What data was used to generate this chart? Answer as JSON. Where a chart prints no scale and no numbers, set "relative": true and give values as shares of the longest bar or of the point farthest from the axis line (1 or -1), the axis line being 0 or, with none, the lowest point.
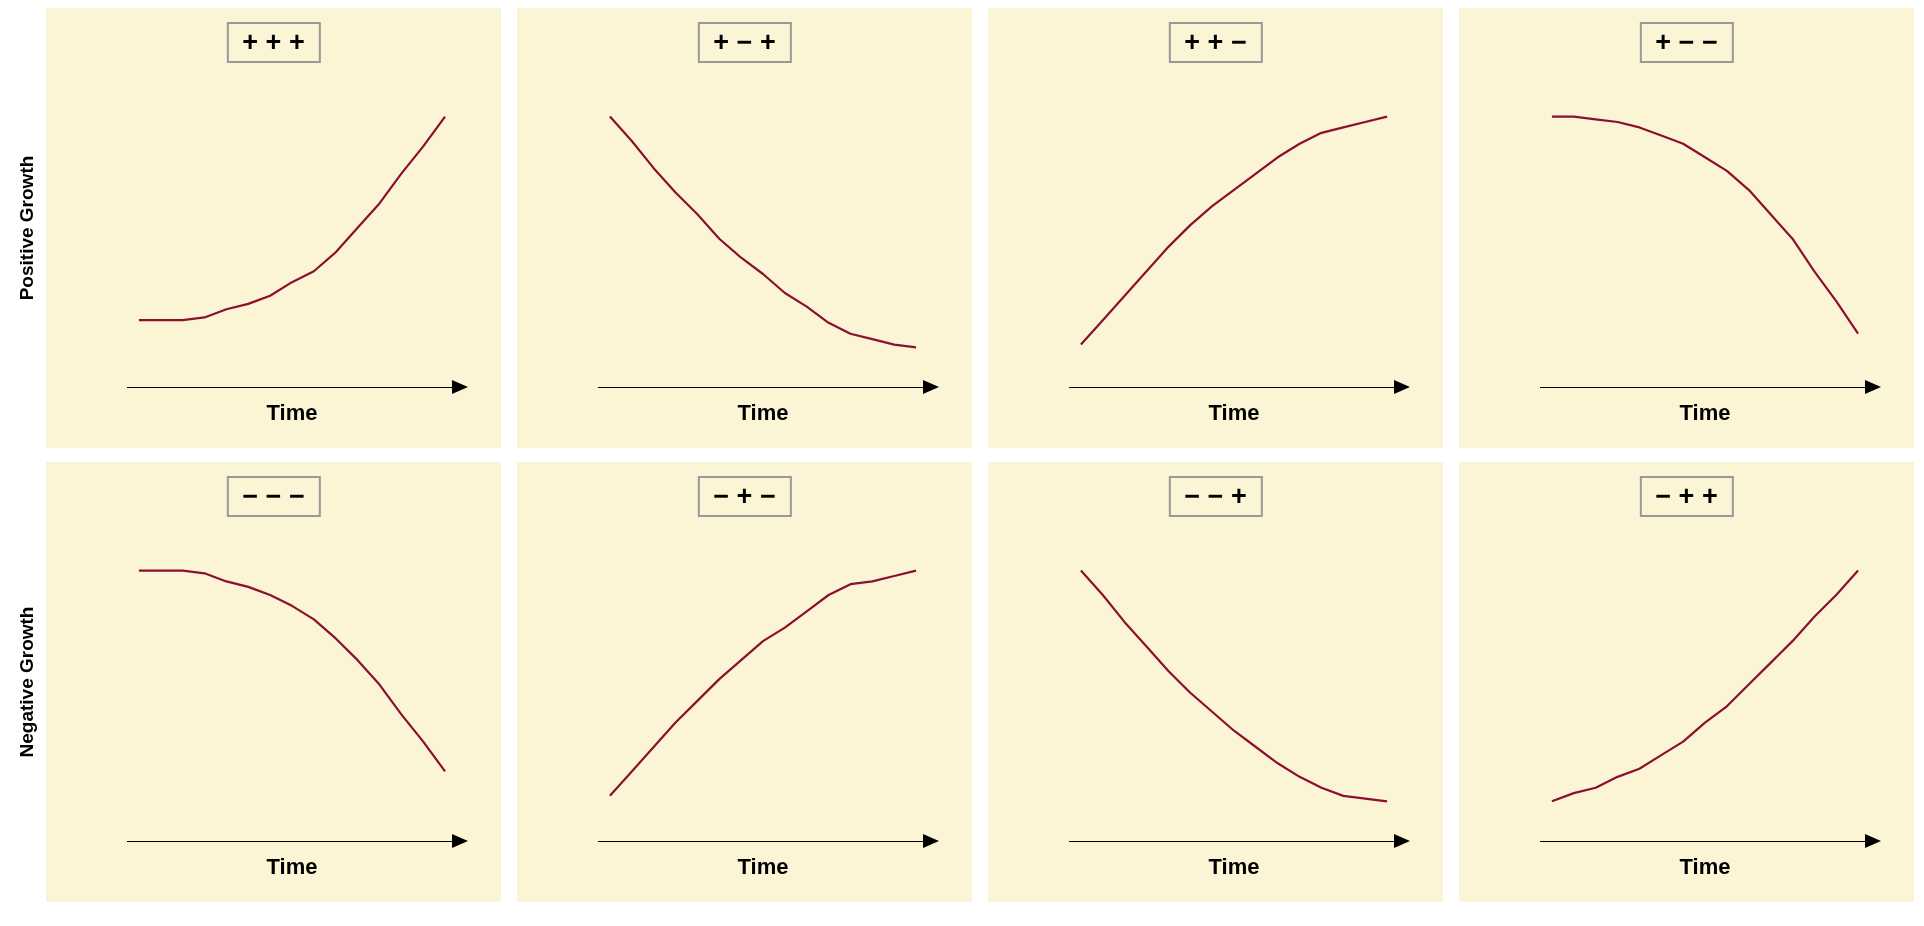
{
  "chart_data": [
    {
      "type": "line",
      "relative": true,
      "title": "+ + +",
      "xlabel": "Time",
      "ylabel": "Positive Growth",
      "categories": [
        null,
        null,
        null,
        null,
        null,
        null,
        null,
        null,
        null,
        null,
        null,
        null,
        null,
        null,
        null
      ],
      "series": [
        {
          "color": "#8b0f2e",
          "values": [
            0.25,
            0.25,
            0.25,
            0.26,
            0.29,
            0.31,
            0.34,
            0.39,
            0.43,
            0.5,
            0.59,
            0.68,
            0.79,
            0.89,
            1
          ]
        }
      ]
    },
    {
      "type": "line",
      "relative": true,
      "title": "+ − +",
      "xlabel": "Time",
      "categories": [
        null,
        null,
        null,
        null,
        null,
        null,
        null,
        null,
        null,
        null,
        null,
        null,
        null,
        null,
        null
      ],
      "series": [
        {
          "color": "#8b0f2e",
          "values": [
            1,
            0.91,
            0.81,
            0.72,
            0.64,
            0.55,
            0.48,
            0.42,
            0.35,
            0.3,
            0.24,
            0.2,
            0.18,
            0.16,
            0.15
          ]
        }
      ]
    },
    {
      "type": "line",
      "relative": true,
      "title": "+ + −",
      "xlabel": "Time",
      "categories": [
        null,
        null,
        null,
        null,
        null,
        null,
        null,
        null,
        null,
        null,
        null,
        null,
        null,
        null,
        null
      ],
      "series": [
        {
          "color": "#8b0f2e",
          "values": [
            0.16,
            0.25,
            0.34,
            0.43,
            0.52,
            0.6,
            0.67,
            0.73,
            0.79,
            0.85,
            0.9,
            0.94,
            0.96,
            0.98,
            1
          ]
        }
      ]
    },
    {
      "type": "line",
      "relative": true,
      "title": "+ − −",
      "xlabel": "Time",
      "categories": [
        null,
        null,
        null,
        null,
        null,
        null,
        null,
        null,
        null,
        null,
        null,
        null,
        null,
        null,
        null
      ],
      "series": [
        {
          "color": "#8b0f2e",
          "values": [
            1,
            1,
            0.99,
            0.98,
            0.96,
            0.93,
            0.9,
            0.85,
            0.8,
            0.73,
            0.64,
            0.55,
            0.43,
            0.32,
            0.2
          ]
        }
      ]
    },
    {
      "type": "line",
      "relative": true,
      "title": "− − −",
      "xlabel": "Time",
      "ylabel": "Negative Growth",
      "categories": [
        null,
        null,
        null,
        null,
        null,
        null,
        null,
        null,
        null,
        null,
        null,
        null,
        null,
        null,
        null
      ],
      "series": [
        {
          "color": "#8b0f2e",
          "values": [
            1,
            1,
            1,
            0.99,
            0.96,
            0.94,
            0.91,
            0.87,
            0.82,
            0.75,
            0.67,
            0.58,
            0.47,
            0.37,
            0.26
          ]
        }
      ]
    },
    {
      "type": "line",
      "relative": true,
      "title": "− + −",
      "xlabel": "Time",
      "categories": [
        null,
        null,
        null,
        null,
        null,
        null,
        null,
        null,
        null,
        null,
        null,
        null,
        null,
        null,
        null
      ],
      "series": [
        {
          "color": "#8b0f2e",
          "values": [
            0.17,
            0.26,
            0.35,
            0.44,
            0.52,
            0.6,
            0.67,
            0.74,
            0.79,
            0.85,
            0.91,
            0.95,
            0.96,
            0.98,
            1
          ]
        }
      ]
    },
    {
      "type": "line",
      "relative": true,
      "title": "− − +",
      "xlabel": "Time",
      "categories": [
        null,
        null,
        null,
        null,
        null,
        null,
        null,
        null,
        null,
        null,
        null,
        null,
        null,
        null,
        null
      ],
      "series": [
        {
          "color": "#8b0f2e",
          "values": [
            1,
            0.91,
            0.81,
            0.72,
            0.63,
            0.55,
            0.48,
            0.41,
            0.35,
            0.29,
            0.24,
            0.2,
            0.17,
            0.16,
            0.15
          ]
        }
      ]
    },
    {
      "type": "line",
      "relative": true,
      "title": "− + +",
      "xlabel": "Time",
      "categories": [
        null,
        null,
        null,
        null,
        null,
        null,
        null,
        null,
        null,
        null,
        null,
        null,
        null,
        null,
        null
      ],
      "series": [
        {
          "color": "#8b0f2e",
          "values": [
            0.15,
            0.18,
            0.2,
            0.24,
            0.27,
            0.32,
            0.37,
            0.44,
            0.5,
            0.58,
            0.66,
            0.74,
            0.83,
            0.91,
            1
          ]
        }
      ]
    }
  ]
}
